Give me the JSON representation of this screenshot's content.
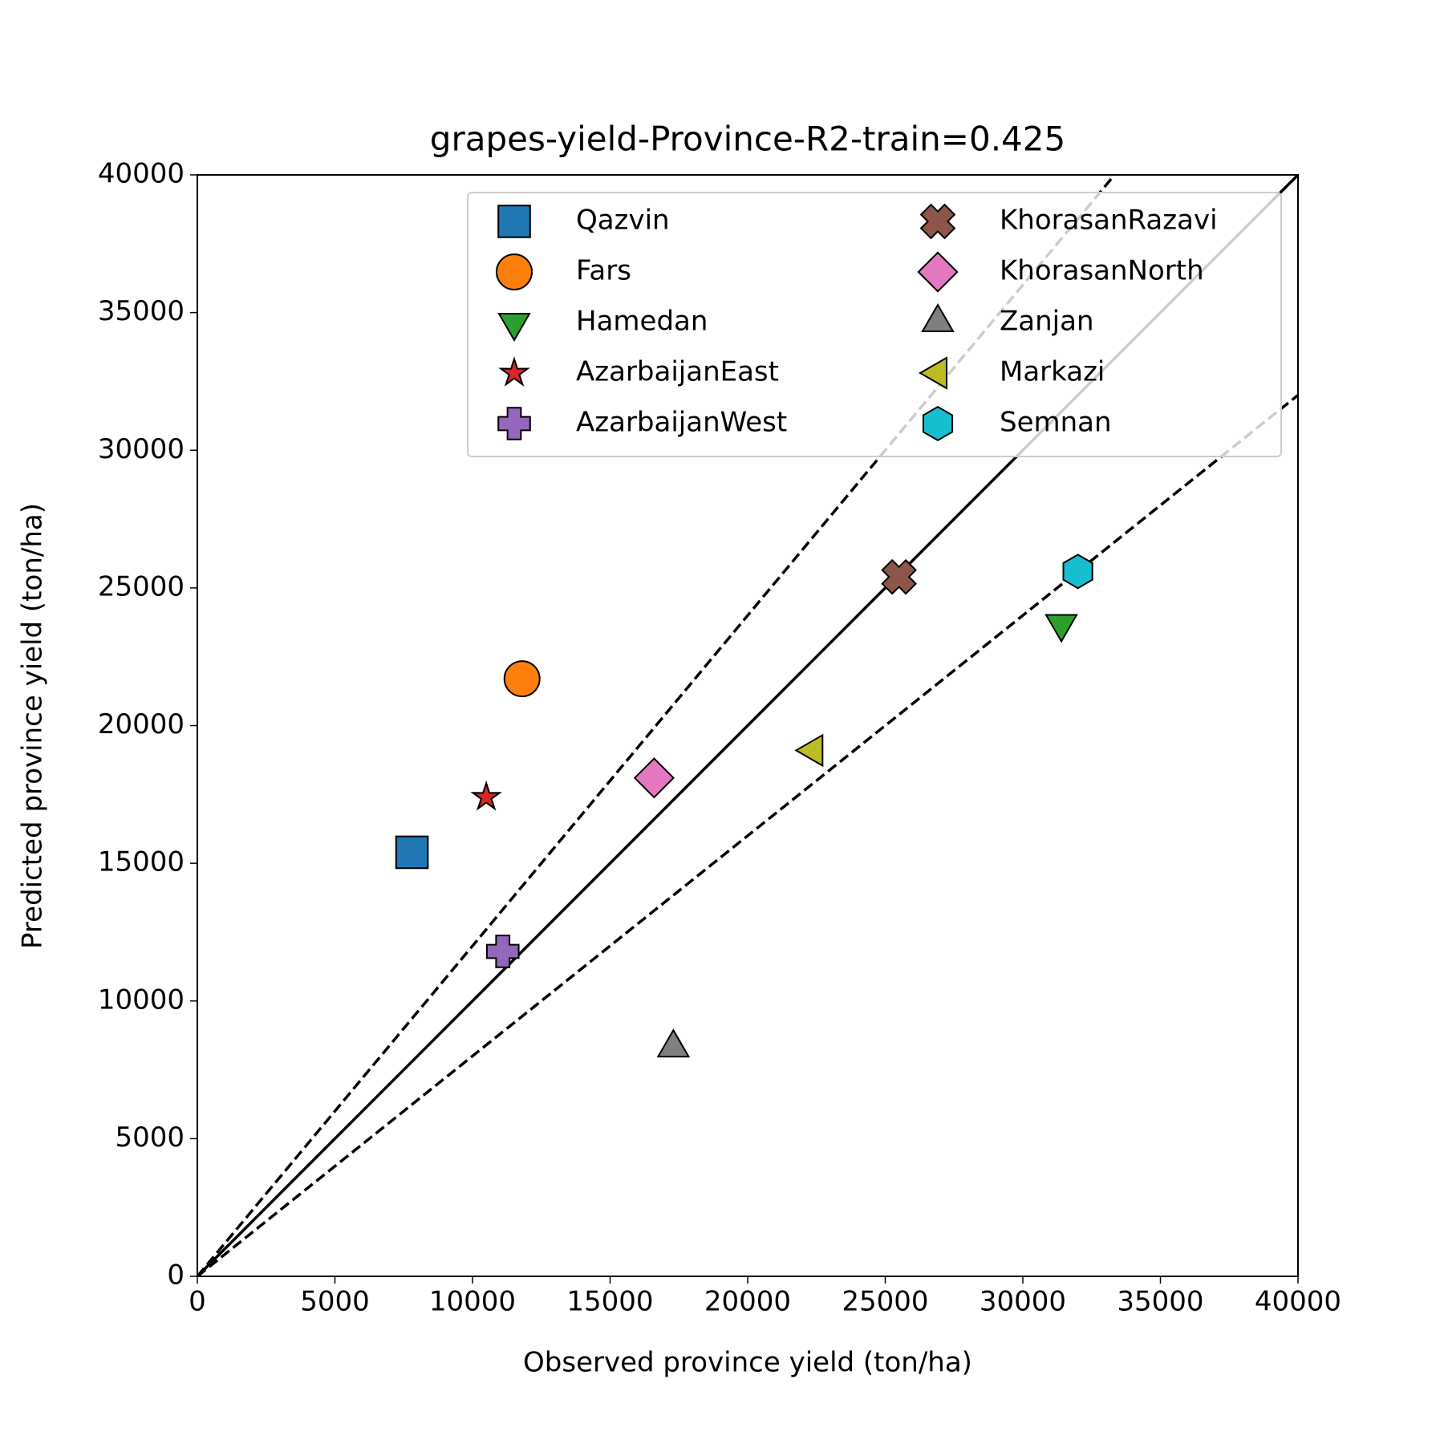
{
  "chart_data": {
    "type": "scatter",
    "title": "grapes-yield-Province-R2-train=0.425",
    "x_label": "Observed province yield (ton/ha)",
    "y_label": "Predicted province yield (ton/ha)",
    "xlim": [
      0,
      40000
    ],
    "ylim": [
      0,
      40000
    ],
    "xticks": [
      0,
      5000,
      10000,
      15000,
      20000,
      25000,
      30000,
      35000,
      40000
    ],
    "yticks": [
      0,
      5000,
      10000,
      15000,
      20000,
      25000,
      30000,
      35000,
      40000
    ],
    "grid": false,
    "legend_position": "upper right",
    "legend_columns": 2,
    "reference_lines": [
      {
        "slope": 1,
        "dashed": false
      },
      {
        "slope": 1.2,
        "dashed": true
      },
      {
        "slope": 0.8,
        "dashed": true
      }
    ],
    "series": [
      {
        "name": "Qazvin",
        "color": "#1f77b4",
        "marker": "square",
        "x": [
          7800
        ],
        "values": [
          15400
        ]
      },
      {
        "name": "Fars",
        "color": "#ff7f0e",
        "marker": "circle",
        "x": [
          11800
        ],
        "values": [
          21700
        ]
      },
      {
        "name": "Hamedan",
        "color": "#2ca02c",
        "marker": "triangle-down",
        "x": [
          31400
        ],
        "values": [
          23700
        ]
      },
      {
        "name": "AzarbaijanEast",
        "color": "#d62728",
        "marker": "star",
        "x": [
          10500
        ],
        "values": [
          17400
        ]
      },
      {
        "name": "AzarbaijanWest",
        "color": "#9467bd",
        "marker": "plus",
        "x": [
          11100
        ],
        "values": [
          11800
        ]
      },
      {
        "name": "KhorasanRazavi",
        "color": "#8c564b",
        "marker": "x",
        "x": [
          25500
        ],
        "values": [
          25400
        ]
      },
      {
        "name": "KhorasanNorth",
        "color": "#e377c2",
        "marker": "diamond",
        "x": [
          16600
        ],
        "values": [
          18100
        ]
      },
      {
        "name": "Zanjan",
        "color": "#7f7f7f",
        "marker": "triangle-up",
        "x": [
          17300
        ],
        "values": [
          8300
        ]
      },
      {
        "name": "Markazi",
        "color": "#bcbd22",
        "marker": "triangle-left",
        "x": [
          22400
        ],
        "values": [
          19100
        ]
      },
      {
        "name": "Semnan",
        "color": "#17becf",
        "marker": "hexagon",
        "x": [
          32000
        ],
        "values": [
          25600
        ]
      }
    ]
  }
}
